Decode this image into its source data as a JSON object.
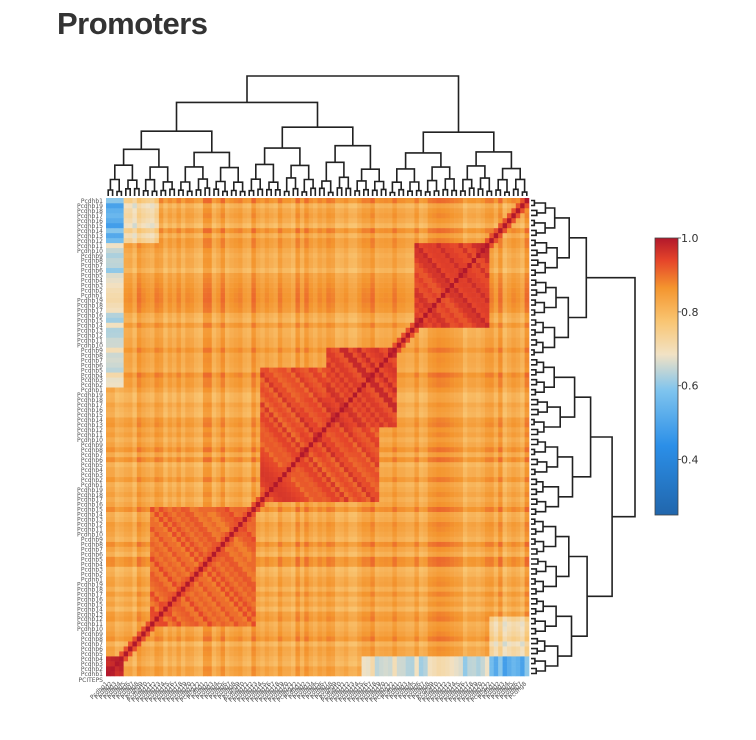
{
  "page": {
    "title": "Promoters"
  },
  "chart_data": {
    "type": "heatmap",
    "title": "Promoters",
    "matrix_kind": "symmetric correlation with hierarchical clustering dendrograms on top and right",
    "diagonal_value": 1.0,
    "value_range": [
      0.25,
      1.0
    ],
    "colorscale": [
      [
        0.0,
        "#2166ac"
      ],
      [
        0.25,
        "#2b8fe8"
      ],
      [
        0.45,
        "#7fc4ee"
      ],
      [
        0.58,
        "#f2e2c4"
      ],
      [
        0.7,
        "#f9c572"
      ],
      [
        0.82,
        "#f4952e"
      ],
      [
        0.92,
        "#e5442a"
      ],
      [
        1.0,
        "#b2182b"
      ]
    ],
    "colorbar": {
      "ticks": [
        "1.0",
        "0.8",
        "0.6",
        "0.4"
      ],
      "tick_values": [
        1.0,
        0.8,
        0.6,
        0.4
      ]
    },
    "n_items": 96,
    "row_labels_last_visible": "PCITEPS",
    "blocks": [
      {
        "from": 0.36,
        "to": 0.64,
        "mean": 0.93
      },
      {
        "from": 0.52,
        "to": 0.68,
        "mean": 0.95
      },
      {
        "from": 0.72,
        "to": 0.9,
        "mean": 0.95
      },
      {
        "from": 0.45,
        "to": 0.58,
        "mean": 0.94
      },
      {
        "from": 0.0,
        "to": 0.035,
        "mean": 0.99
      },
      {
        "from": 0.1,
        "to": 0.35,
        "mean": 0.91
      }
    ],
    "background_mean": 0.84,
    "low_edge_item_mean": 0.6
  },
  "colors": {
    "title": "#333333",
    "axis_line": "#222222",
    "label_text": "#555555"
  }
}
